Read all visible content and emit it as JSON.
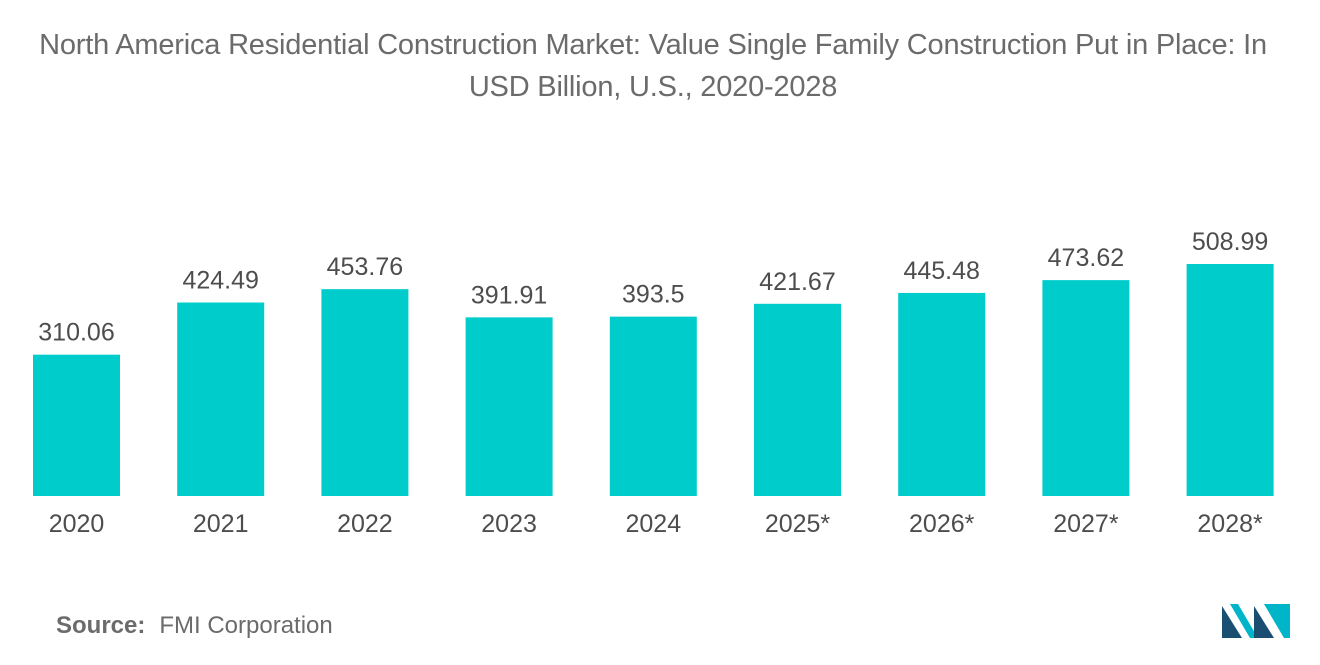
{
  "chart_data": {
    "type": "bar",
    "title": "North America Residential Construction Market: Value Single Family Construction Put in Place: In USD Billion, U.S., 2020-2028",
    "categories": [
      "2020",
      "2021",
      "2022",
      "2023",
      "2024",
      "2025*",
      "2026*",
      "2027*",
      "2028*"
    ],
    "values": [
      310.06,
      424.49,
      453.76,
      391.91,
      393.5,
      421.67,
      445.48,
      473.62,
      508.99
    ],
    "value_labels": [
      "310.06",
      "424.49",
      "453.76",
      "391.91",
      "393.5",
      "421.67",
      "445.48",
      "473.62",
      "508.99"
    ],
    "xlabel": "",
    "ylabel": "",
    "ylim": [
      0,
      508.99
    ],
    "grid": false,
    "legend": "none",
    "bar_color": "#00cccc",
    "label_color": "#4d4d4d"
  },
  "source": {
    "label": "Source:",
    "text": "FMI Corporation"
  },
  "logo": {
    "icon": "mordor-intelligence-logo-icon",
    "color_dark": "#1b4f72",
    "color_light": "#00b5c8"
  }
}
